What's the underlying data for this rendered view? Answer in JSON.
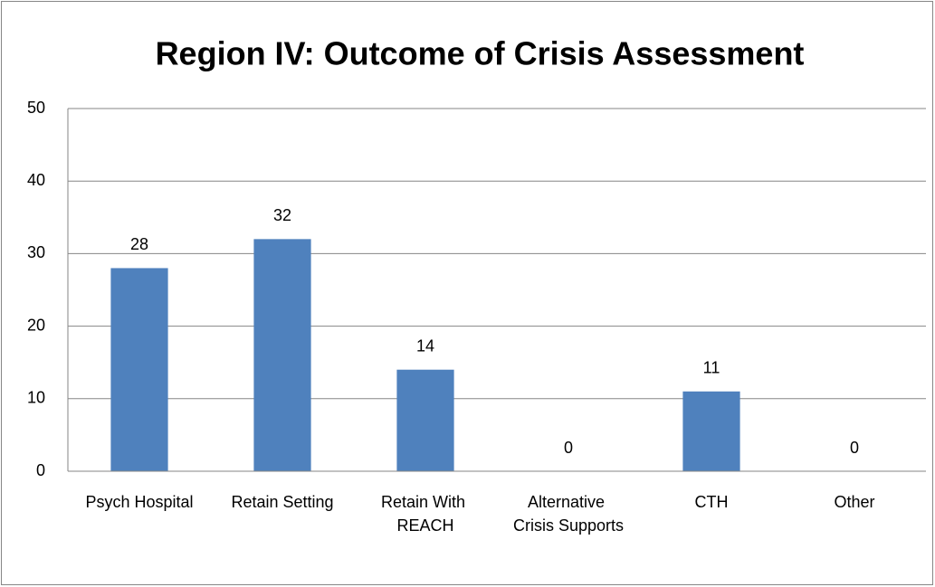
{
  "chart_data": {
    "type": "bar",
    "title": "Region IV: Outcome of Crisis Assessment",
    "categories": [
      "Psych Hospital",
      "Retain Setting",
      "Retain With REACH",
      "Alternative Crisis Supports",
      "CTH",
      "Other"
    ],
    "values": [
      28,
      32,
      14,
      0,
      11,
      0
    ],
    "color": "#4f81bd",
    "ylim": [
      0,
      50
    ],
    "yticks": [
      0,
      10,
      20,
      30,
      40,
      50
    ],
    "grid": true
  }
}
